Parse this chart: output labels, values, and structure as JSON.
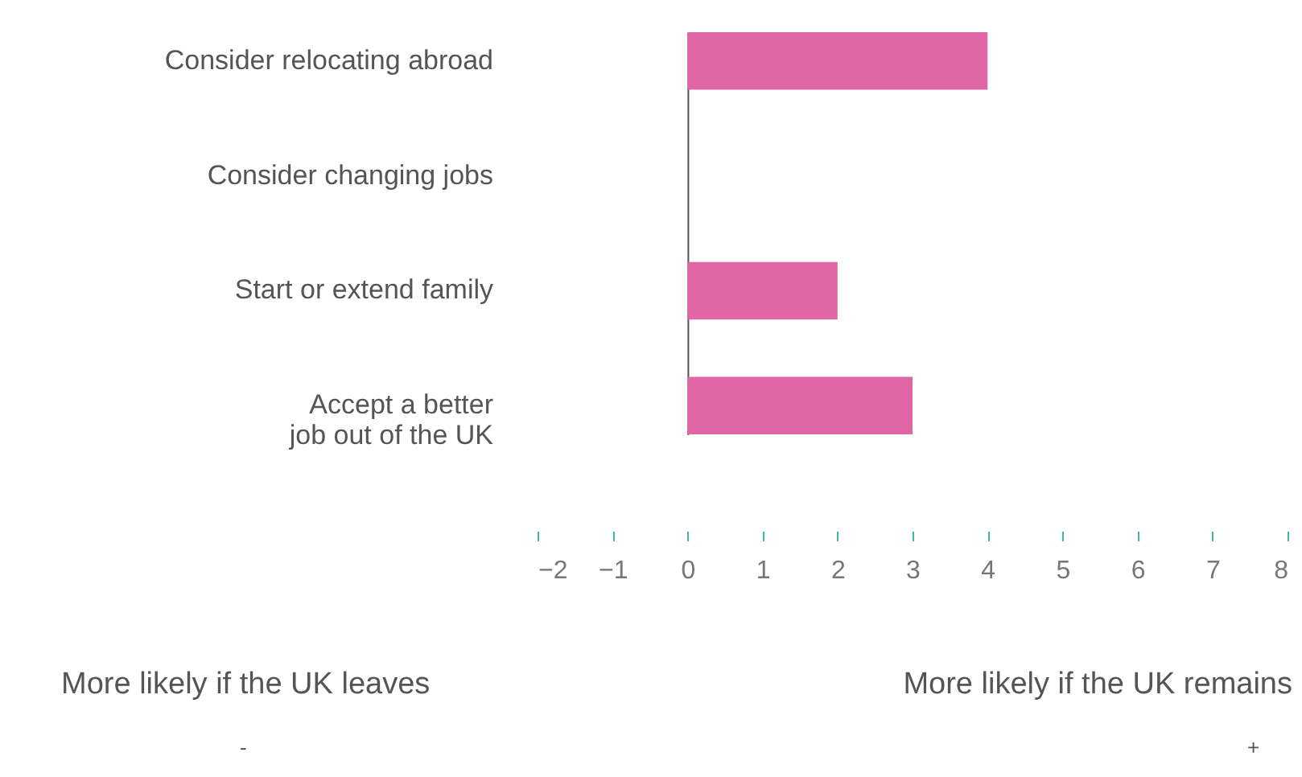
{
  "chart_data": {
    "type": "bar",
    "orientation": "horizontal",
    "categories": [
      "Consider relocating abroad",
      "Consider changing jobs",
      "Start or extend family",
      "Accept a better\njob out of the UK"
    ],
    "values": [
      4,
      0,
      2,
      3
    ],
    "color": "#e066a6",
    "xlim": [
      -2,
      8
    ],
    "xticks": [
      -2,
      -1,
      0,
      1,
      2,
      3,
      4,
      5,
      6,
      7,
      8
    ],
    "annotations": [
      "More likely if the UK  leaves",
      "More likely if the UK remains",
      "-",
      "+"
    ]
  }
}
